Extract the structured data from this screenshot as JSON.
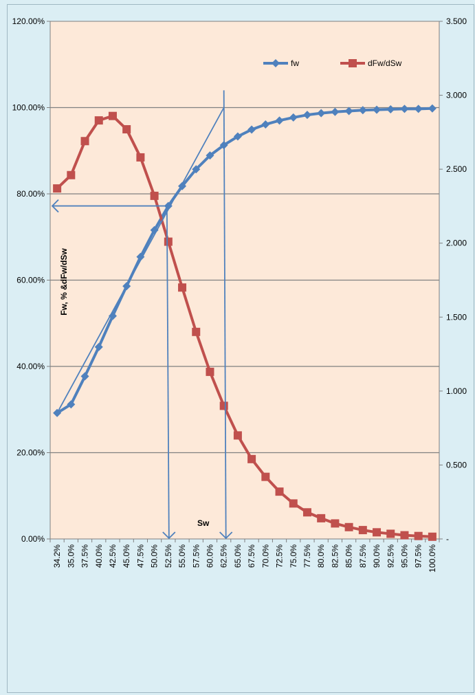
{
  "chart_data": {
    "type": "line",
    "title": "",
    "xlabel": "Sw",
    "ylabel": "Fw, % &dFw/dSw",
    "categories": [
      "34.2%",
      "35.0%",
      "37.5%",
      "40.0%",
      "42.5%",
      "45.0%",
      "47.5%",
      "50.0%",
      "52.5%",
      "55.0%",
      "57.5%",
      "60.0%",
      "62.5%",
      "65.0%",
      "67.5%",
      "70.0%",
      "72.5%",
      "75.0%",
      "77.5%",
      "80.0%",
      "82.5%",
      "85.0%",
      "87.5%",
      "90.0%",
      "92.5%",
      "95.0%",
      "97.5%",
      "100.0%"
    ],
    "y_left": {
      "ticks": [
        "0.00%",
        "20.00%",
        "40.00%",
        "60.00%",
        "80.00%",
        "100.00%",
        "120.00%"
      ],
      "range": [
        0,
        120
      ]
    },
    "y_right": {
      "ticks": [
        "-",
        "0.500",
        "1.000",
        "1.500",
        "2.000",
        "2.500",
        "3.000",
        "3.500"
      ],
      "range": [
        0,
        3.5
      ]
    },
    "grid": "horizontal",
    "legend_position": "top-right",
    "series": [
      {
        "name": "fw",
        "axis": "left",
        "color": "#4f81bd",
        "marker": "diamond",
        "values": [
          29.2,
          31.2,
          37.7,
          44.5,
          51.7,
          58.6,
          65.4,
          71.6,
          77.2,
          81.8,
          85.7,
          88.9,
          91.3,
          93.3,
          94.9,
          96.1,
          97.0,
          97.7,
          98.3,
          98.7,
          99.0,
          99.2,
          99.4,
          99.5,
          99.6,
          99.7,
          99.7,
          99.8
        ]
      },
      {
        "name": "dFw/dSw",
        "axis": "right",
        "color": "#c0504d",
        "marker": "square",
        "values": [
          2.37,
          2.46,
          2.69,
          2.83,
          2.86,
          2.77,
          2.58,
          2.32,
          2.01,
          1.7,
          1.4,
          1.13,
          0.9,
          0.7,
          0.54,
          0.42,
          0.32,
          0.24,
          0.18,
          0.14,
          0.105,
          0.08,
          0.06,
          0.045,
          0.035,
          0.025,
          0.02,
          0.015
        ]
      }
    ],
    "annotations": {
      "color": "#4f81bd",
      "tangent_line": {
        "from": {
          "x_index": 0,
          "y": 29.2
        },
        "to": {
          "x_index": 12,
          "y": 100
        }
      },
      "horizontal_arrow": {
        "y": 77.2,
        "from_x_index": 8,
        "to": "left-axis"
      },
      "vertical_arrows": [
        {
          "x_index": 8,
          "from_y": 77.2,
          "to_y": 0
        },
        {
          "x_index": 12,
          "from_y": 104,
          "to_y": 0
        }
      ]
    }
  }
}
